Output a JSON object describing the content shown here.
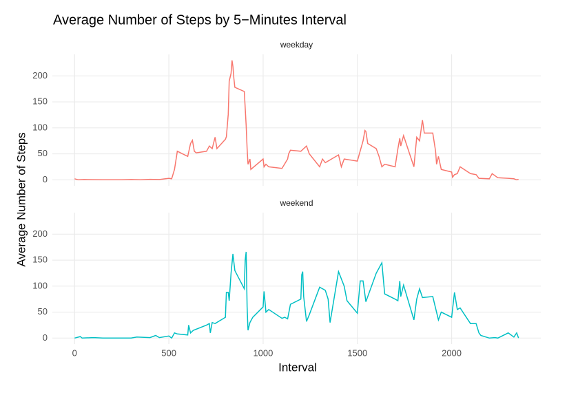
{
  "chart_data": {
    "type": "line",
    "title": "Average Number of Steps by 5−Minutes Interval",
    "x_label": "Interval",
    "y_label": "Average Number of Steps",
    "xlim": [
      -118,
      2473
    ],
    "xticks": [
      0,
      500,
      1000,
      1500,
      2000
    ],
    "ylim": [
      -11.5,
      241.5
    ],
    "yticks": [
      0,
      50,
      100,
      150,
      200
    ],
    "grid": true,
    "series": [
      {
        "name": "weekday",
        "color": "#f8766d",
        "x": [
          0,
          20,
          50,
          100,
          150,
          200,
          250,
          300,
          350,
          400,
          450,
          500,
          515,
          530,
          545,
          600,
          615,
          625,
          635,
          645,
          700,
          715,
          730,
          745,
          755,
          800,
          805,
          815,
          820,
          830,
          835,
          840,
          845,
          850,
          900,
          910,
          915,
          920,
          930,
          935,
          1000,
          1005,
          1015,
          1030,
          1100,
          1130,
          1135,
          1145,
          1200,
          1230,
          1245,
          1300,
          1315,
          1330,
          1400,
          1415,
          1430,
          1500,
          1530,
          1540,
          1545,
          1555,
          1600,
          1615,
          1630,
          1645,
          1700,
          1715,
          1725,
          1730,
          1745,
          1800,
          1815,
          1830,
          1845,
          1855,
          1900,
          1915,
          1920,
          1930,
          1945,
          2000,
          2005,
          2015,
          2030,
          2045,
          2100,
          2130,
          2145,
          2200,
          2215,
          2245,
          2300,
          2330,
          2345,
          2355
        ],
        "values": [
          2,
          0,
          0.5,
          0.3,
          0,
          0,
          0,
          0.5,
          0,
          1,
          0.5,
          3,
          2,
          20,
          55,
          45,
          70,
          76,
          55,
          52,
          55,
          65,
          60,
          82,
          60,
          78,
          83,
          126,
          190,
          205,
          230,
          218,
          195,
          178,
          170,
          105,
          60,
          30,
          40,
          20,
          40,
          25,
          30,
          25,
          22,
          40,
          50,
          57,
          55,
          65,
          50,
          25,
          40,
          33,
          48,
          25,
          40,
          36,
          75,
          95,
          93,
          70,
          60,
          45,
          25,
          30,
          25,
          60,
          80,
          65,
          85,
          25,
          82,
          75,
          115,
          90,
          90,
          55,
          30,
          45,
          20,
          15,
          5,
          10,
          12,
          25,
          12,
          10,
          3,
          2,
          12,
          4,
          3,
          2,
          0,
          1
        ]
      },
      {
        "name": "weekend",
        "color": "#00bfc4",
        "x": [
          0,
          30,
          40,
          100,
          150,
          200,
          300,
          330,
          400,
          430,
          450,
          500,
          515,
          530,
          545,
          600,
          605,
          615,
          630,
          700,
          715,
          720,
          730,
          745,
          800,
          805,
          815,
          820,
          830,
          840,
          850,
          900,
          905,
          910,
          915,
          920,
          930,
          945,
          1000,
          1005,
          1010,
          1015,
          1030,
          1100,
          1115,
          1130,
          1145,
          1200,
          1205,
          1210,
          1215,
          1230,
          1245,
          1300,
          1330,
          1345,
          1355,
          1400,
          1430,
          1445,
          1500,
          1515,
          1530,
          1545,
          1600,
          1630,
          1645,
          1700,
          1715,
          1725,
          1730,
          1745,
          1800,
          1815,
          1830,
          1845,
          1900,
          1930,
          1945,
          2000,
          2015,
          2030,
          2045,
          2100,
          2130,
          2145,
          2155,
          2200,
          2230,
          2245,
          2300,
          2330,
          2345,
          2355
        ],
        "values": [
          0,
          3,
          0,
          1,
          0,
          0,
          0,
          2,
          1,
          5,
          1,
          4,
          0,
          10,
          8,
          6,
          25,
          10,
          15,
          25,
          28,
          10,
          30,
          28,
          40,
          88,
          88,
          72,
          125,
          162,
          130,
          95,
          150,
          166,
          60,
          15,
          30,
          40,
          60,
          90,
          70,
          50,
          55,
          38,
          40,
          37,
          65,
          75,
          122,
          128,
          80,
          32,
          45,
          98,
          92,
          75,
          30,
          128,
          100,
          72,
          48,
          110,
          110,
          70,
          125,
          145,
          85,
          75,
          72,
          110,
          80,
          102,
          35,
          75,
          95,
          78,
          80,
          35,
          50,
          40,
          88,
          55,
          58,
          28,
          28,
          10,
          5,
          0,
          1,
          0,
          10,
          2,
          10,
          0
        ]
      }
    ]
  }
}
